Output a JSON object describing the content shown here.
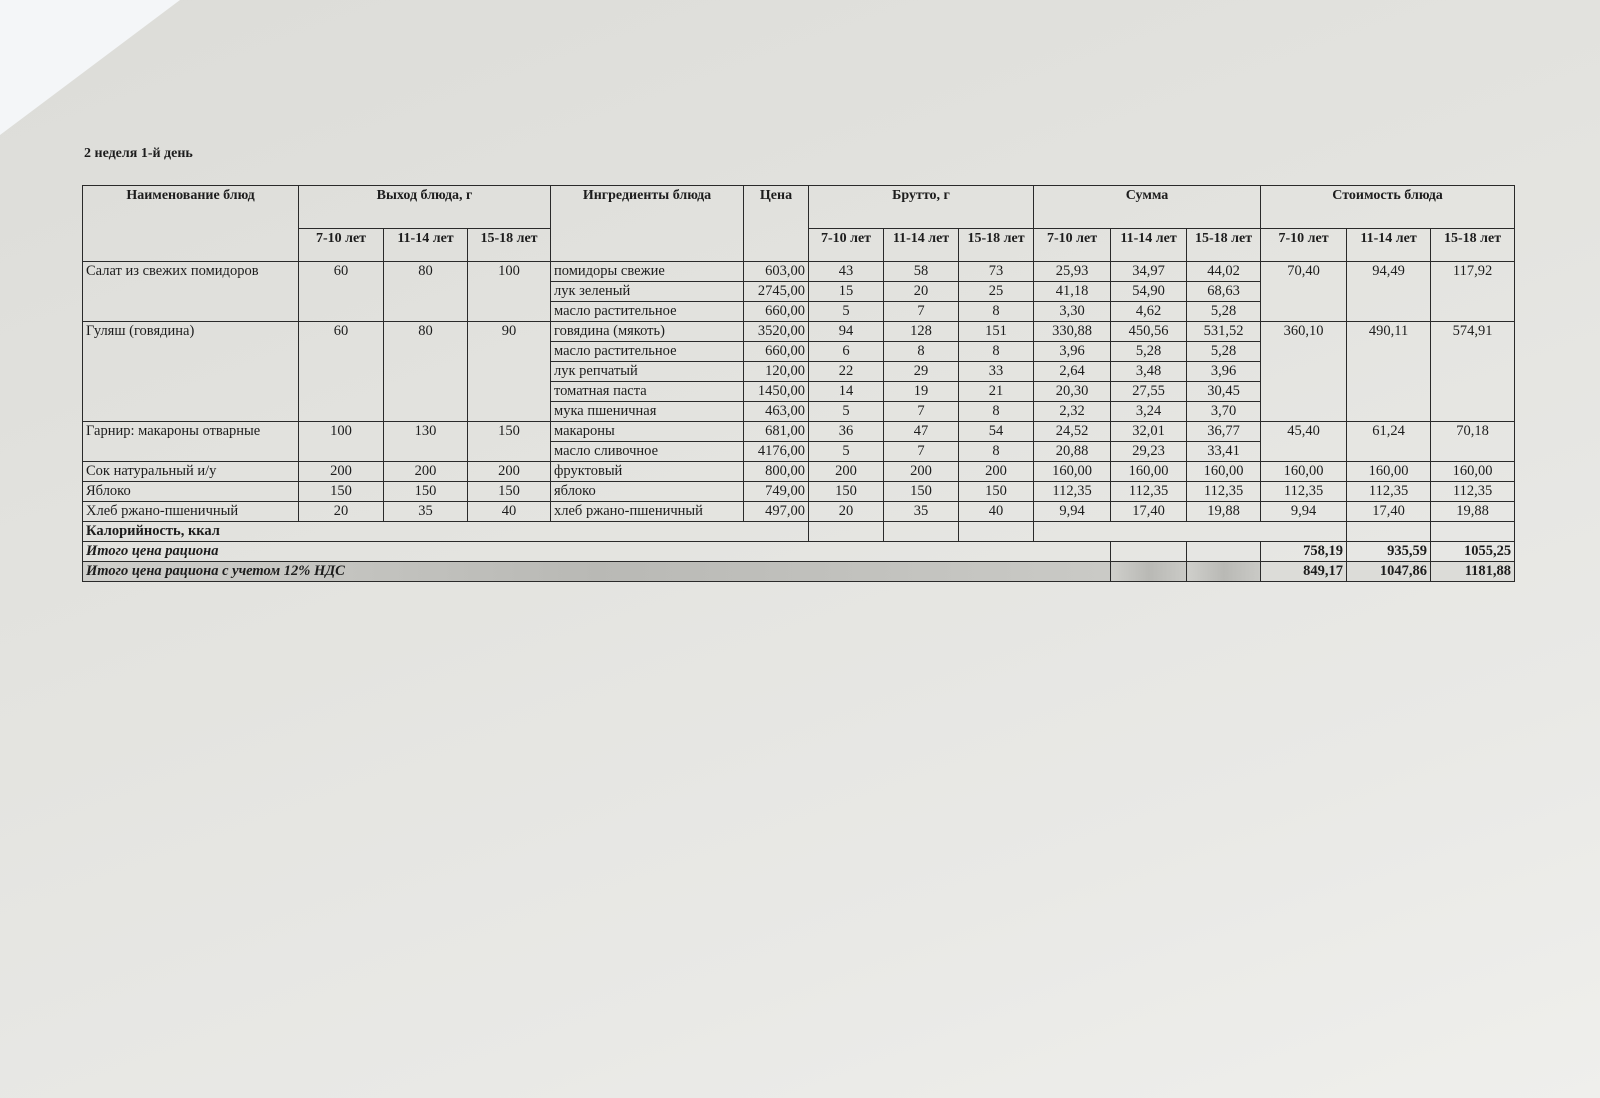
{
  "title": "2 неделя 1-й день",
  "headers": {
    "dish_name": "Наименование блюд",
    "yield": "Выход блюда, г",
    "ingredients": "Ингредиенты блюда",
    "price": "Цена",
    "brutto": "Брутто, г",
    "sum": "Сумма",
    "cost": "Стоимость блюда",
    "ages": [
      "7-10 лет",
      "11-14 лет",
      "15-18 лет"
    ]
  },
  "dishes": [
    {
      "name": "Салат из свежих помидоров",
      "yield": [
        "60",
        "80",
        "100"
      ],
      "cost": [
        "70,40",
        "94,49",
        "117,92"
      ],
      "ingredients": [
        {
          "name": "помидоры свежие",
          "price": "603,00",
          "brutto": [
            "43",
            "58",
            "73"
          ],
          "sum": [
            "25,93",
            "34,97",
            "44,02"
          ]
        },
        {
          "name": "лук зеленый",
          "price": "2745,00",
          "brutto": [
            "15",
            "20",
            "25"
          ],
          "sum": [
            "41,18",
            "54,90",
            "68,63"
          ]
        },
        {
          "name": "масло растительное",
          "price": "660,00",
          "brutto": [
            "5",
            "7",
            "8"
          ],
          "sum": [
            "3,30",
            "4,62",
            "5,28"
          ]
        }
      ]
    },
    {
      "name": "Гуляш (говядина)",
      "yield": [
        "60",
        "80",
        "90"
      ],
      "cost": [
        "360,10",
        "490,11",
        "574,91"
      ],
      "ingredients": [
        {
          "name": "говядина (мякоть)",
          "price": "3520,00",
          "brutto": [
            "94",
            "128",
            "151"
          ],
          "sum": [
            "330,88",
            "450,56",
            "531,52"
          ]
        },
        {
          "name": "масло растительное",
          "price": "660,00",
          "brutto": [
            "6",
            "8",
            "8"
          ],
          "sum": [
            "3,96",
            "5,28",
            "5,28"
          ]
        },
        {
          "name": "лук репчатый",
          "price": "120,00",
          "brutto": [
            "22",
            "29",
            "33"
          ],
          "sum": [
            "2,64",
            "3,48",
            "3,96"
          ]
        },
        {
          "name": "томатная паста",
          "price": "1450,00",
          "brutto": [
            "14",
            "19",
            "21"
          ],
          "sum": [
            "20,30",
            "27,55",
            "30,45"
          ]
        },
        {
          "name": "мука пшеничная",
          "price": "463,00",
          "brutto": [
            "5",
            "7",
            "8"
          ],
          "sum": [
            "2,32",
            "3,24",
            "3,70"
          ]
        }
      ]
    },
    {
      "name": "Гарнир: макароны отварные",
      "yield": [
        "100",
        "130",
        "150"
      ],
      "cost": [
        "45,40",
        "61,24",
        "70,18"
      ],
      "ingredients": [
        {
          "name": "макароны",
          "price": "681,00",
          "brutto": [
            "36",
            "47",
            "54"
          ],
          "sum": [
            "24,52",
            "32,01",
            "36,77"
          ]
        },
        {
          "name": "масло сливочное",
          "price": "4176,00",
          "brutto": [
            "5",
            "7",
            "8"
          ],
          "sum": [
            "20,88",
            "29,23",
            "33,41"
          ]
        }
      ]
    },
    {
      "name": "Сок натуральный и/у",
      "yield": [
        "200",
        "200",
        "200"
      ],
      "cost": [
        "160,00",
        "160,00",
        "160,00"
      ],
      "ingredients": [
        {
          "name": "фруктовый",
          "price": "800,00",
          "brutto": [
            "200",
            "200",
            "200"
          ],
          "sum": [
            "160,00",
            "160,00",
            "160,00"
          ]
        }
      ]
    },
    {
      "name": "Яблоко",
      "yield": [
        "150",
        "150",
        "150"
      ],
      "cost": [
        "112,35",
        "112,35",
        "112,35"
      ],
      "ingredients": [
        {
          "name": "яблоко",
          "price": "749,00",
          "brutto": [
            "150",
            "150",
            "150"
          ],
          "sum": [
            "112,35",
            "112,35",
            "112,35"
          ]
        }
      ]
    },
    {
      "name": "Хлеб ржано-пшеничный",
      "yield": [
        "20",
        "35",
        "40"
      ],
      "cost": [
        "9,94",
        "17,40",
        "19,88"
      ],
      "ingredients": [
        {
          "name": "хлеб ржано-пшеничный",
          "price": "497,00",
          "brutto": [
            "20",
            "35",
            "40"
          ],
          "sum": [
            "9,94",
            "17,40",
            "19,88"
          ]
        }
      ]
    }
  ],
  "calories_label": "Калорийность, ккал",
  "total": {
    "label": "Итого цена рациона",
    "values": [
      "758,19",
      "935,59",
      "1055,25"
    ]
  },
  "total_vat": {
    "label": "Итого цена рациона с учетом 12% НДС",
    "values": [
      "849,17",
      "1047,86",
      "1181,88"
    ]
  }
}
